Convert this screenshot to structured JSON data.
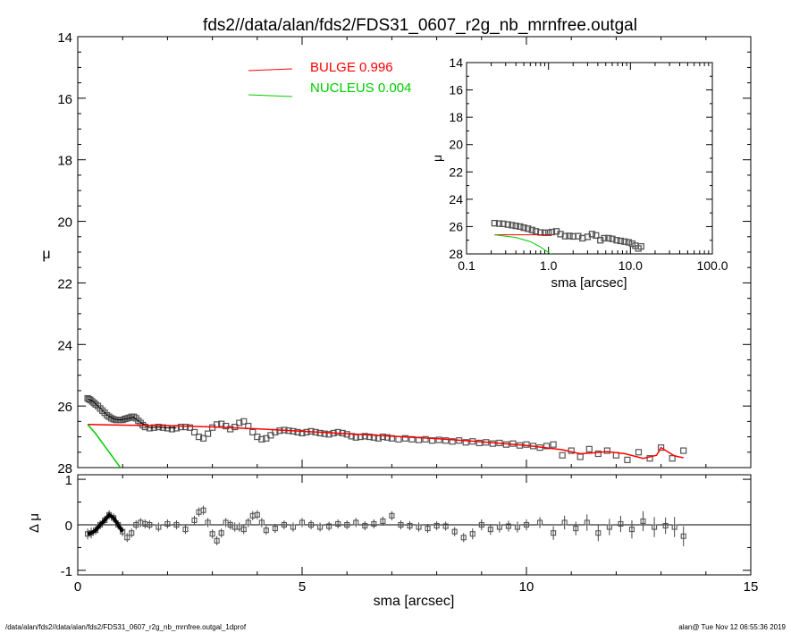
{
  "chart_data": [
    {
      "id": "main",
      "type": "scatter",
      "title": "fds2//data/alan/fds2/FDS31_0607_r2g_nb_mrnfree.outgal",
      "xlabel": "",
      "ylabel": "μ",
      "xlim": [
        0,
        15
      ],
      "ylim": [
        28,
        14
      ],
      "y_inverted": true,
      "x_tick_labels": [
        "0",
        "5",
        "10",
        "15"
      ],
      "y_tick_labels": [
        "14",
        "16",
        "18",
        "20",
        "22",
        "24",
        "26",
        "28"
      ],
      "legend_placement": "top-center",
      "legend": [
        {
          "label": "BULGE  0.996",
          "color": "#ff0000"
        },
        {
          "label": "NUCLEUS  0.004",
          "color": "#00cc00"
        }
      ],
      "series": [
        {
          "name": "data",
          "kind": "open-squares",
          "color": "#555555",
          "x": [
            0.22,
            0.25,
            0.28,
            0.32,
            0.36,
            0.4,
            0.45,
            0.5,
            0.55,
            0.6,
            0.65,
            0.7,
            0.75,
            0.8,
            0.85,
            0.9,
            0.95,
            1.0,
            1.05,
            1.1,
            1.15,
            1.2,
            1.25,
            1.3,
            1.35,
            1.4,
            1.45,
            1.5,
            1.6,
            1.7,
            1.8,
            1.9,
            2.0,
            2.1,
            2.2,
            2.3,
            2.4,
            2.5,
            2.6,
            2.7,
            2.8,
            2.9,
            3.0,
            3.1,
            3.2,
            3.3,
            3.4,
            3.5,
            3.6,
            3.7,
            3.8,
            3.9,
            4.0,
            4.1,
            4.2,
            4.3,
            4.4,
            4.5,
            4.6,
            4.7,
            4.8,
            4.9,
            5.0,
            5.1,
            5.2,
            5.3,
            5.4,
            5.5,
            5.6,
            5.7,
            5.8,
            5.9,
            6.0,
            6.1,
            6.2,
            6.3,
            6.4,
            6.5,
            6.6,
            6.7,
            6.8,
            6.9,
            7.0,
            7.15,
            7.3,
            7.45,
            7.6,
            7.75,
            7.9,
            8.05,
            8.2,
            8.35,
            8.5,
            8.65,
            8.8,
            8.95,
            9.1,
            9.25,
            9.4,
            9.55,
            9.7,
            9.85,
            10.0,
            10.15,
            10.3,
            10.45,
            10.6,
            10.8,
            11.0,
            11.2,
            11.4,
            11.6,
            11.8,
            12.0,
            12.25,
            12.5,
            12.75,
            13.0,
            13.25,
            13.5
          ],
          "y": [
            25.75,
            25.78,
            25.8,
            25.85,
            25.9,
            25.95,
            26.0,
            26.08,
            26.15,
            26.22,
            26.3,
            26.35,
            26.4,
            26.43,
            26.45,
            26.45,
            26.45,
            26.45,
            26.42,
            26.4,
            26.38,
            26.35,
            26.35,
            26.4,
            26.48,
            26.55,
            26.62,
            26.68,
            26.72,
            26.7,
            26.68,
            26.7,
            26.72,
            26.75,
            26.72,
            26.68,
            26.68,
            26.7,
            26.85,
            27.0,
            27.05,
            26.9,
            26.7,
            26.6,
            26.58,
            26.65,
            26.75,
            26.68,
            26.55,
            26.5,
            26.65,
            26.85,
            27.0,
            27.08,
            27.05,
            26.95,
            26.85,
            26.8,
            26.78,
            26.8,
            26.82,
            26.85,
            26.88,
            26.85,
            26.82,
            26.85,
            26.88,
            26.9,
            26.92,
            26.88,
            26.85,
            26.88,
            26.92,
            26.98,
            27.02,
            27.0,
            26.98,
            27.0,
            27.02,
            27.05,
            27.0,
            27.02,
            27.05,
            27.08,
            27.05,
            27.08,
            27.1,
            27.08,
            27.12,
            27.1,
            27.12,
            27.15,
            27.12,
            27.18,
            27.15,
            27.2,
            27.18,
            27.22,
            27.2,
            27.25,
            27.22,
            27.28,
            27.25,
            27.3,
            27.35,
            27.3,
            27.25,
            27.6,
            27.45,
            27.65,
            27.4,
            27.55,
            27.45,
            27.6,
            27.75,
            27.5,
            27.7,
            27.35,
            27.7,
            27.45
          ]
        },
        {
          "name": "model",
          "kind": "line",
          "color": "#000000",
          "x": [
            0.22,
            0.35,
            0.5,
            0.65,
            0.8,
            0.95,
            1.1,
            1.25,
            1.4,
            1.6,
            1.8,
            2.0,
            2.2
          ],
          "y": [
            25.76,
            25.86,
            26.07,
            26.29,
            26.42,
            26.45,
            26.41,
            26.36,
            26.54,
            26.7,
            26.69,
            26.71,
            26.71
          ]
        },
        {
          "name": "BULGE",
          "kind": "line",
          "color": "#ff0000",
          "x": [
            0.22,
            1.0,
            2.0,
            3.0,
            4.0,
            5.0,
            6.0,
            7.0,
            8.0,
            9.0,
            10.0,
            10.8,
            11.2,
            11.5,
            11.8,
            12.2,
            12.6,
            12.9,
            13.0,
            13.3,
            13.5
          ],
          "y": [
            26.6,
            26.62,
            26.64,
            26.68,
            26.74,
            26.82,
            26.9,
            26.98,
            27.06,
            27.16,
            27.28,
            27.42,
            27.55,
            27.52,
            27.48,
            27.55,
            27.7,
            27.6,
            27.35,
            27.62,
            27.68
          ]
        },
        {
          "name": "NUCLEUS",
          "kind": "line",
          "color": "#00cc00",
          "x": [
            0.22,
            0.4,
            0.6,
            0.8,
            1.0
          ],
          "y": [
            26.6,
            26.9,
            27.3,
            27.7,
            28.1
          ]
        }
      ]
    },
    {
      "id": "residual",
      "type": "scatter",
      "xlabel": "sma [arcsec]",
      "ylabel": "Δ μ",
      "xlim": [
        0,
        15
      ],
      "ylim": [
        -1.1,
        1.1
      ],
      "x_tick_labels": [
        "0",
        "5",
        "10",
        "15"
      ],
      "y_tick_labels": [
        "1",
        "0",
        "-1"
      ],
      "zero_line": true,
      "series": [
        {
          "name": "residual",
          "kind": "open-squares-with-errors",
          "color": "#555555",
          "x": [
            0.22,
            0.3,
            0.4,
            0.5,
            0.6,
            0.7,
            0.8,
            0.9,
            1.0,
            1.1,
            1.2,
            1.3,
            1.4,
            1.5,
            1.6,
            1.8,
            2.0,
            2.2,
            2.4,
            2.6,
            2.7,
            2.8,
            2.9,
            3.0,
            3.1,
            3.2,
            3.3,
            3.4,
            3.5,
            3.6,
            3.7,
            3.8,
            3.9,
            4.0,
            4.1,
            4.2,
            4.4,
            4.6,
            4.8,
            5.0,
            5.2,
            5.4,
            5.6,
            5.8,
            6.0,
            6.2,
            6.4,
            6.6,
            6.8,
            7.0,
            7.2,
            7.4,
            7.6,
            7.8,
            8.0,
            8.2,
            8.4,
            8.6,
            8.8,
            9.0,
            9.2,
            9.4,
            9.6,
            9.8,
            10.0,
            10.3,
            10.6,
            10.85,
            11.1,
            11.35,
            11.6,
            11.85,
            12.1,
            12.35,
            12.6,
            12.85,
            13.1,
            13.3,
            13.5
          ],
          "y": [
            -0.2,
            -0.18,
            -0.12,
            0.0,
            0.1,
            0.22,
            0.15,
            0.0,
            -0.15,
            -0.28,
            -0.18,
            0.0,
            0.05,
            0.02,
            0.0,
            -0.05,
            0.02,
            0.0,
            -0.1,
            0.1,
            0.28,
            0.32,
            0.05,
            -0.2,
            -0.35,
            -0.18,
            0.05,
            0.0,
            -0.05,
            -0.05,
            -0.1,
            0.05,
            0.2,
            0.22,
            0.05,
            -0.12,
            -0.08,
            0.0,
            -0.05,
            0.05,
            0.0,
            -0.05,
            -0.03,
            0.02,
            0.0,
            0.05,
            -0.02,
            0.02,
            0.08,
            0.2,
            0.0,
            -0.02,
            -0.05,
            -0.08,
            -0.02,
            -0.03,
            -0.15,
            -0.28,
            -0.2,
            0.0,
            -0.1,
            -0.05,
            -0.03,
            -0.05,
            0.0,
            0.05,
            -0.18,
            0.05,
            -0.08,
            0.05,
            -0.18,
            -0.05,
            0.02,
            -0.1,
            0.08,
            -0.05,
            -0.02,
            -0.05,
            -0.25
          ],
          "err": [
            0.12,
            0.12,
            0.1,
            0.1,
            0.1,
            0.1,
            0.1,
            0.1,
            0.1,
            0.1,
            0.1,
            0.1,
            0.1,
            0.1,
            0.1,
            0.1,
            0.1,
            0.1,
            0.1,
            0.1,
            0.1,
            0.1,
            0.1,
            0.1,
            0.1,
            0.1,
            0.1,
            0.1,
            0.1,
            0.1,
            0.1,
            0.1,
            0.1,
            0.1,
            0.1,
            0.1,
            0.1,
            0.1,
            0.1,
            0.1,
            0.1,
            0.1,
            0.1,
            0.1,
            0.1,
            0.1,
            0.1,
            0.1,
            0.1,
            0.1,
            0.1,
            0.1,
            0.1,
            0.1,
            0.1,
            0.1,
            0.1,
            0.1,
            0.12,
            0.12,
            0.12,
            0.12,
            0.12,
            0.12,
            0.12,
            0.12,
            0.15,
            0.15,
            0.15,
            0.18,
            0.18,
            0.18,
            0.18,
            0.2,
            0.22,
            0.22,
            0.18,
            0.22,
            0.22
          ]
        }
      ]
    },
    {
      "id": "inset",
      "type": "scatter",
      "xlabel": "sma [arcsec]",
      "ylabel": "μ",
      "x_scale": "log",
      "xlim": [
        0.1,
        100
      ],
      "ylim": [
        28,
        14
      ],
      "y_inverted": true,
      "x_tick_labels": [
        "0.1",
        "1.0",
        "10.0",
        "100.0"
      ],
      "y_tick_labels": [
        "14",
        "16",
        "18",
        "20",
        "22",
        "24",
        "26",
        "28"
      ],
      "series": [
        {
          "name": "data",
          "kind": "open-squares",
          "color": "#555555",
          "x": [
            0.22,
            0.25,
            0.28,
            0.32,
            0.36,
            0.4,
            0.45,
            0.5,
            0.56,
            0.63,
            0.7,
            0.8,
            0.9,
            1.0,
            1.1,
            1.25,
            1.4,
            1.6,
            1.8,
            2.0,
            2.3,
            2.6,
            3.0,
            3.4,
            3.8,
            4.3,
            4.8,
            5.4,
            6.0,
            6.8,
            7.6,
            8.5,
            9.5,
            10.5,
            11.5,
            12.5,
            13.5
          ],
          "y": [
            25.75,
            25.78,
            25.8,
            25.85,
            25.9,
            25.95,
            26.0,
            26.08,
            26.15,
            26.25,
            26.35,
            26.43,
            26.45,
            26.45,
            26.4,
            26.35,
            26.55,
            26.7,
            26.68,
            26.72,
            26.7,
            26.85,
            26.75,
            26.55,
            26.65,
            27.0,
            26.85,
            26.85,
            26.9,
            27.0,
            27.05,
            27.1,
            27.15,
            27.25,
            27.4,
            27.6,
            27.45
          ]
        },
        {
          "name": "BULGE",
          "kind": "line",
          "color": "#ff0000",
          "x": [
            0.22,
            1.1
          ],
          "y": [
            26.6,
            26.6
          ]
        },
        {
          "name": "NUCLEUS",
          "kind": "line",
          "color": "#00cc00",
          "x": [
            0.22,
            0.4,
            0.6,
            0.8,
            1.0,
            1.1
          ],
          "y": [
            26.6,
            26.8,
            27.1,
            27.5,
            27.9,
            28.05
          ]
        }
      ]
    }
  ],
  "footer": {
    "left": "/data/alan/fds2//data/alan/fds2/FDS31_0607_r2g_nb_mrnfree.outgal_1dprof",
    "right": "alan@  Tue Nov 12 06:55:36 2019"
  }
}
